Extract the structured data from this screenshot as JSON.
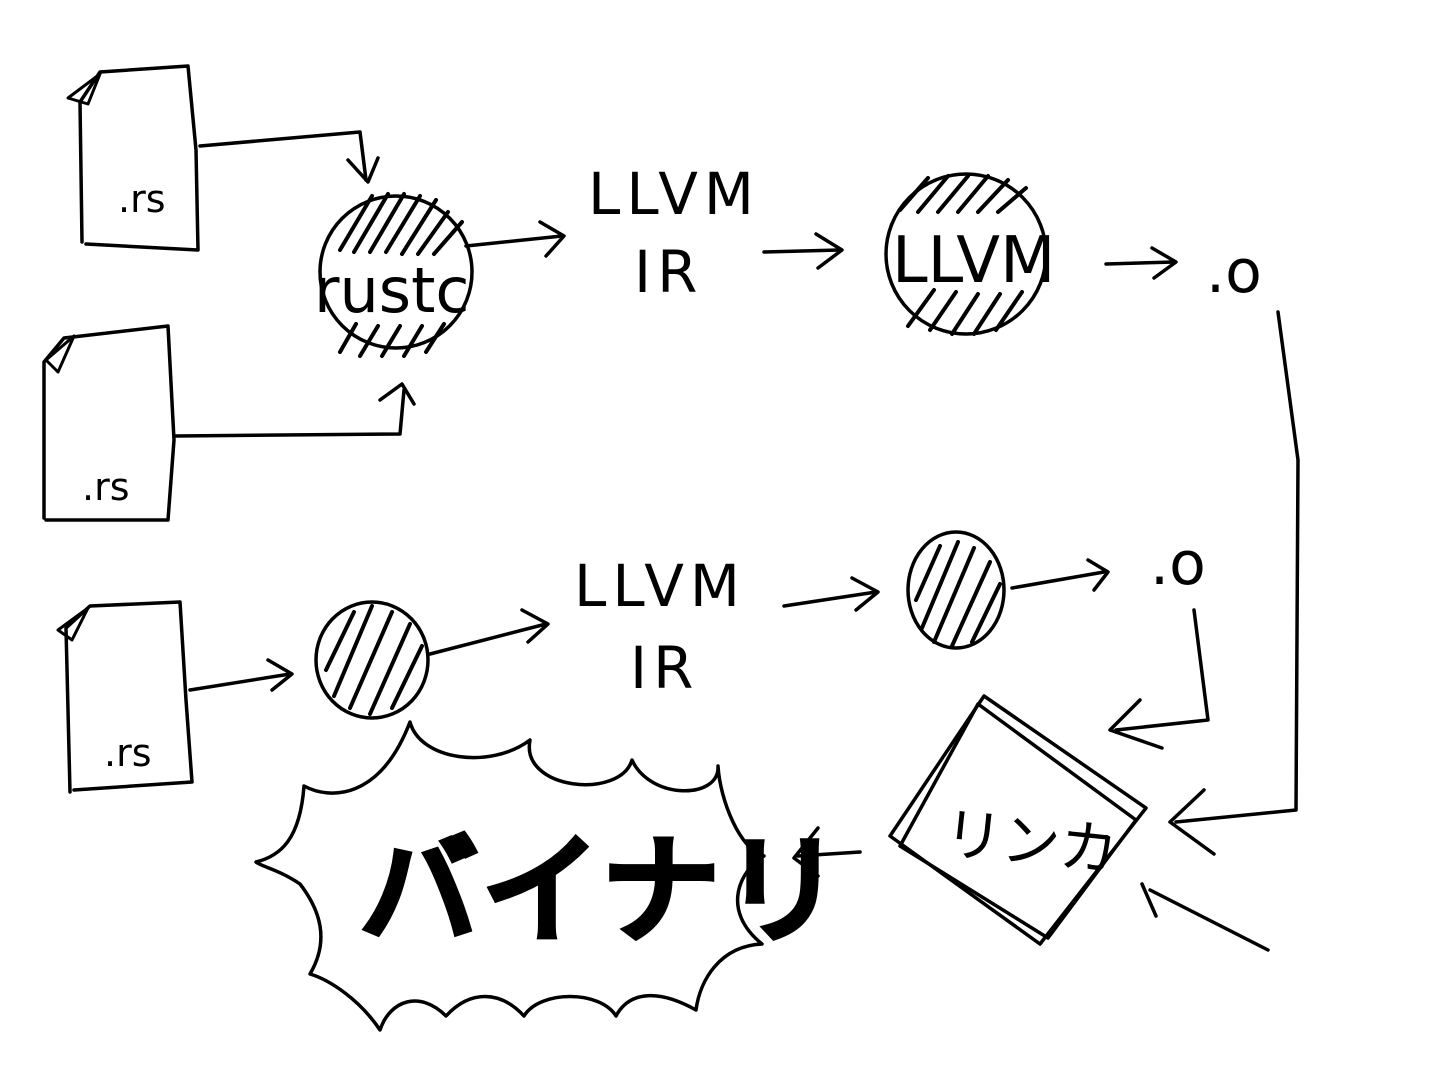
{
  "files": [
    {
      "ext": ".rs"
    },
    {
      "ext": ".rs"
    },
    {
      "ext": ".rs"
    }
  ],
  "compiler": {
    "label": "rustc"
  },
  "ir_top": {
    "line1": "LLVM",
    "line2": "IR"
  },
  "ir_bottom": {
    "line1": "LLVM",
    "line2": "IR"
  },
  "backend_top": {
    "label": "LLVM"
  },
  "object_top": {
    "label": ".o"
  },
  "object_bottom": {
    "label": ".o"
  },
  "linker": {
    "label": "リンカ"
  },
  "binary": {
    "label": "バイナリ"
  }
}
